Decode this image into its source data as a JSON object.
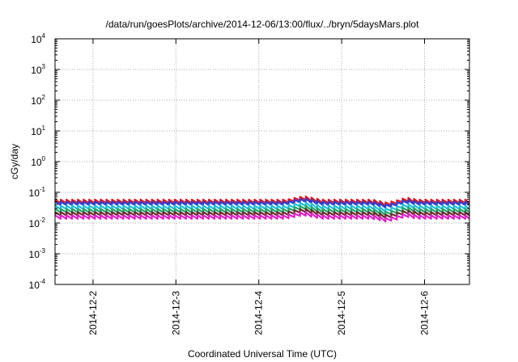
{
  "chart_data": {
    "type": "line",
    "title": "/data/run/goesPlots/archive/2014-12-06/13:00/flux/../bryn/5daysMars.plot",
    "xlabel": "Coordinated Universal Time (UTC)",
    "ylabel": "cGy/day",
    "yscale": "log",
    "ylim": [
      0.0001,
      10000
    ],
    "y_ticks": [
      {
        "base": "10",
        "exp": "-4",
        "value": 0.0001
      },
      {
        "base": "10",
        "exp": "-3",
        "value": 0.001
      },
      {
        "base": "10",
        "exp": "-2",
        "value": 0.01
      },
      {
        "base": "10",
        "exp": "-1",
        "value": 0.1
      },
      {
        "base": "10",
        "exp": "0",
        "value": 1
      },
      {
        "base": "10",
        "exp": "1",
        "value": 10
      },
      {
        "base": "10",
        "exp": "2",
        "value": 100
      },
      {
        "base": "10",
        "exp": "3",
        "value": 1000
      },
      {
        "base": "10",
        "exp": "4",
        "value": 10000
      }
    ],
    "xlim": [
      "2014-12-01 13:00",
      "2014-12-06 13:00"
    ],
    "x_ticks": [
      {
        "label": "2014-12-2",
        "value": "2014-12-02"
      },
      {
        "label": "2014-12-3",
        "value": "2014-12-03"
      },
      {
        "label": "2014-12-4",
        "value": "2014-12-04"
      },
      {
        "label": "2014-12-5",
        "value": "2014-12-05"
      },
      {
        "label": "2014-12-6",
        "value": "2014-12-06"
      }
    ],
    "grid": true,
    "series": [
      {
        "color": "#e8141b",
        "base": 0.058,
        "values": []
      },
      {
        "color": "#2a3fd8",
        "base": 0.05,
        "values": []
      },
      {
        "color": "#22c0d8",
        "base": 0.037,
        "values": []
      },
      {
        "color": "#1ea56a",
        "base": 0.029,
        "values": []
      },
      {
        "color": "#6a2a2a",
        "base": 0.023,
        "values": []
      },
      {
        "color": "#e020c8",
        "base": 0.018,
        "values": []
      }
    ],
    "sawtooth": {
      "period_hours": 1.65,
      "drop_ratio": 0.76,
      "bumps": [
        {
          "at": "2014-12-04 13:00",
          "width_hours": 5,
          "factor": 1.3
        },
        {
          "at": "2014-12-05 13:00",
          "width_hours": 4,
          "factor": 0.8
        },
        {
          "at": "2014-12-05 19:00",
          "width_hours": 3,
          "factor": 1.15
        }
      ]
    }
  }
}
